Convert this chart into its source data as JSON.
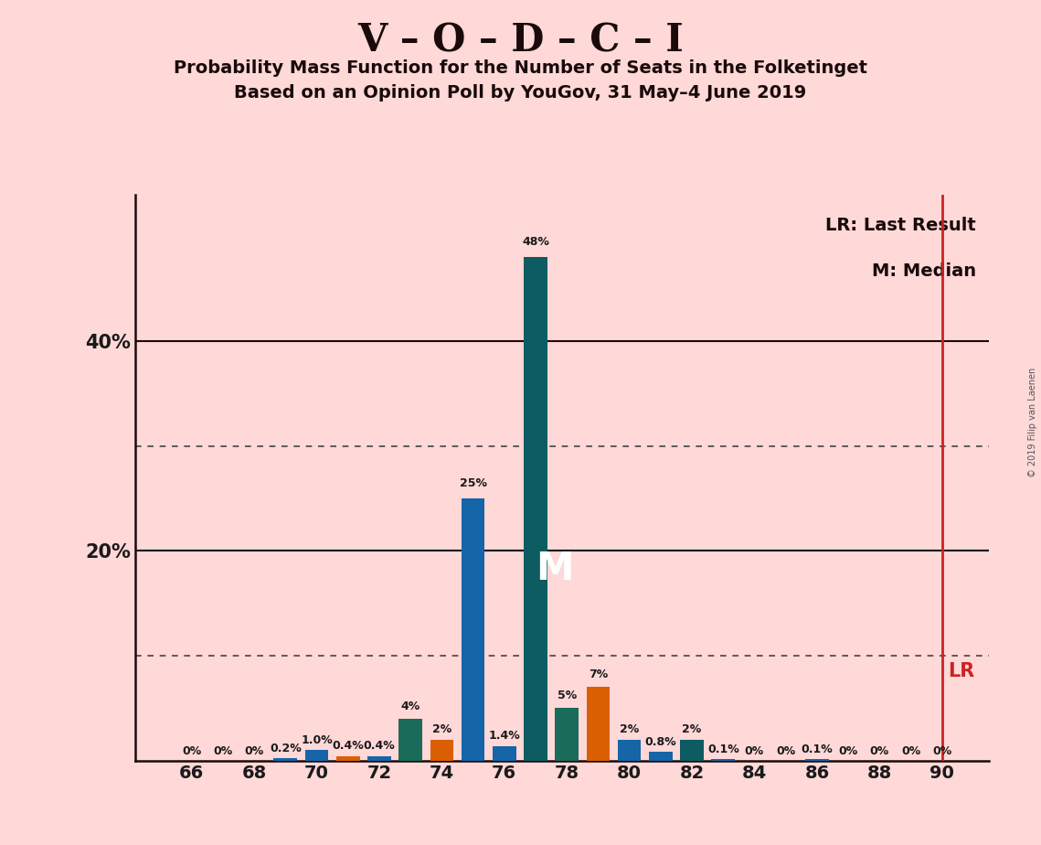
{
  "title1": "V – O – D – C – I",
  "title2": "Probability Mass Function for the Number of Seats in the Folketinget",
  "title3": "Based on an Opinion Poll by YouGov, 31 May–4 June 2019",
  "copyright": "© 2019 Filip van Laenen",
  "background_color": "#ffd8d8",
  "bars": [
    {
      "seat": 66,
      "value": 0.0,
      "color": "#1565a8",
      "label": "0%"
    },
    {
      "seat": 67,
      "value": 0.0,
      "color": "#1565a8",
      "label": "0%"
    },
    {
      "seat": 68,
      "value": 0.0,
      "color": "#1565a8",
      "label": "0%"
    },
    {
      "seat": 69,
      "value": 0.2,
      "color": "#1565a8",
      "label": "0.2%"
    },
    {
      "seat": 70,
      "value": 1.0,
      "color": "#1565a8",
      "label": "1.0%"
    },
    {
      "seat": 71,
      "value": 0.4,
      "color": "#d95f02",
      "label": "0.4%"
    },
    {
      "seat": 72,
      "value": 0.4,
      "color": "#1565a8",
      "label": "0.4%"
    },
    {
      "seat": 73,
      "value": 4.0,
      "color": "#1a6b5a",
      "label": "4%"
    },
    {
      "seat": 74,
      "value": 2.0,
      "color": "#d95f02",
      "label": "2%"
    },
    {
      "seat": 75,
      "value": 25.0,
      "color": "#1565a8",
      "label": "25%"
    },
    {
      "seat": 76,
      "value": 1.4,
      "color": "#1565a8",
      "label": "1.4%"
    },
    {
      "seat": 77,
      "value": 48.0,
      "color": "#0d5c62",
      "label": "48%"
    },
    {
      "seat": 78,
      "value": 5.0,
      "color": "#1a6b5a",
      "label": "5%"
    },
    {
      "seat": 79,
      "value": 7.0,
      "color": "#d95f02",
      "label": "7%"
    },
    {
      "seat": 80,
      "value": 2.0,
      "color": "#1565a8",
      "label": "2%"
    },
    {
      "seat": 81,
      "value": 0.8,
      "color": "#1565a8",
      "label": "0.8%"
    },
    {
      "seat": 82,
      "value": 2.0,
      "color": "#0d5c62",
      "label": "2%"
    },
    {
      "seat": 83,
      "value": 0.1,
      "color": "#1565a8",
      "label": "0.1%"
    },
    {
      "seat": 84,
      "value": 0.0,
      "color": "#1565a8",
      "label": "0%"
    },
    {
      "seat": 85,
      "value": 0.0,
      "color": "#1565a8",
      "label": "0%"
    },
    {
      "seat": 86,
      "value": 0.1,
      "color": "#1565a8",
      "label": "0.1%"
    },
    {
      "seat": 87,
      "value": 0.0,
      "color": "#1565a8",
      "label": "0%"
    },
    {
      "seat": 88,
      "value": 0.0,
      "color": "#1565a8",
      "label": "0%"
    },
    {
      "seat": 89,
      "value": 0.0,
      "color": "#1565a8",
      "label": "0%"
    },
    {
      "seat": 90,
      "value": 0.0,
      "color": "#1565a8",
      "label": "0%"
    }
  ],
  "median_seat": 77,
  "lr_seat": 90,
  "ylim": [
    0,
    54
  ],
  "solid_lines": [
    20,
    40
  ],
  "dotted_lines": [
    10,
    30
  ],
  "ytick_positions": [
    20,
    40
  ],
  "ytick_labels": [
    "20%",
    "40%"
  ],
  "median_text_color": "#ffffff",
  "bar_width": 0.75,
  "lr_color": "#cc2222",
  "legend_lr": "LR: Last Result",
  "legend_m": "M: Median",
  "lr_text": "LR"
}
